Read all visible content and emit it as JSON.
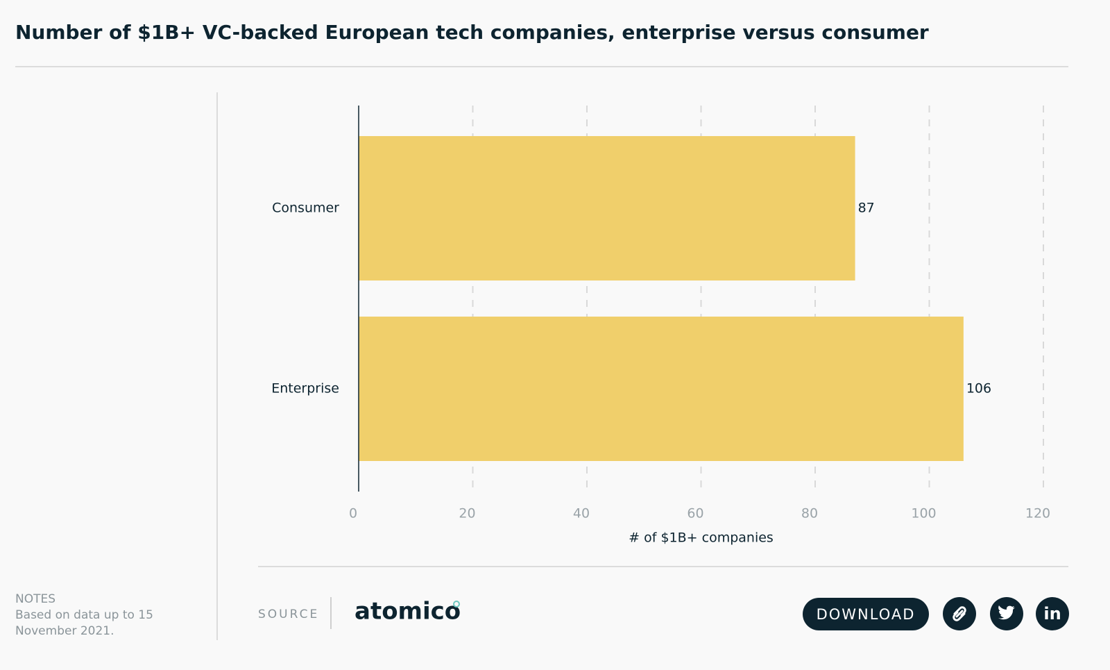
{
  "chart_data": {
    "type": "barh",
    "title": "Number of $1B+ VC-backed European tech companies, enterprise versus consumer",
    "categories": [
      "Consumer",
      "Enterprise"
    ],
    "values": [
      87,
      106
    ],
    "color": "#f0cf6b",
    "xlim": [
      0,
      120
    ],
    "xticks": [
      0,
      20,
      40,
      60,
      80,
      100,
      120
    ],
    "xlabel": "# of $1B+ companies",
    "grid": true
  },
  "notes": {
    "heading": "NOTES",
    "text": "Based on data up to 15 November 2021."
  },
  "footer": {
    "source_label": "SOURCE",
    "source": "atomico",
    "download": "DOWNLOAD"
  }
}
